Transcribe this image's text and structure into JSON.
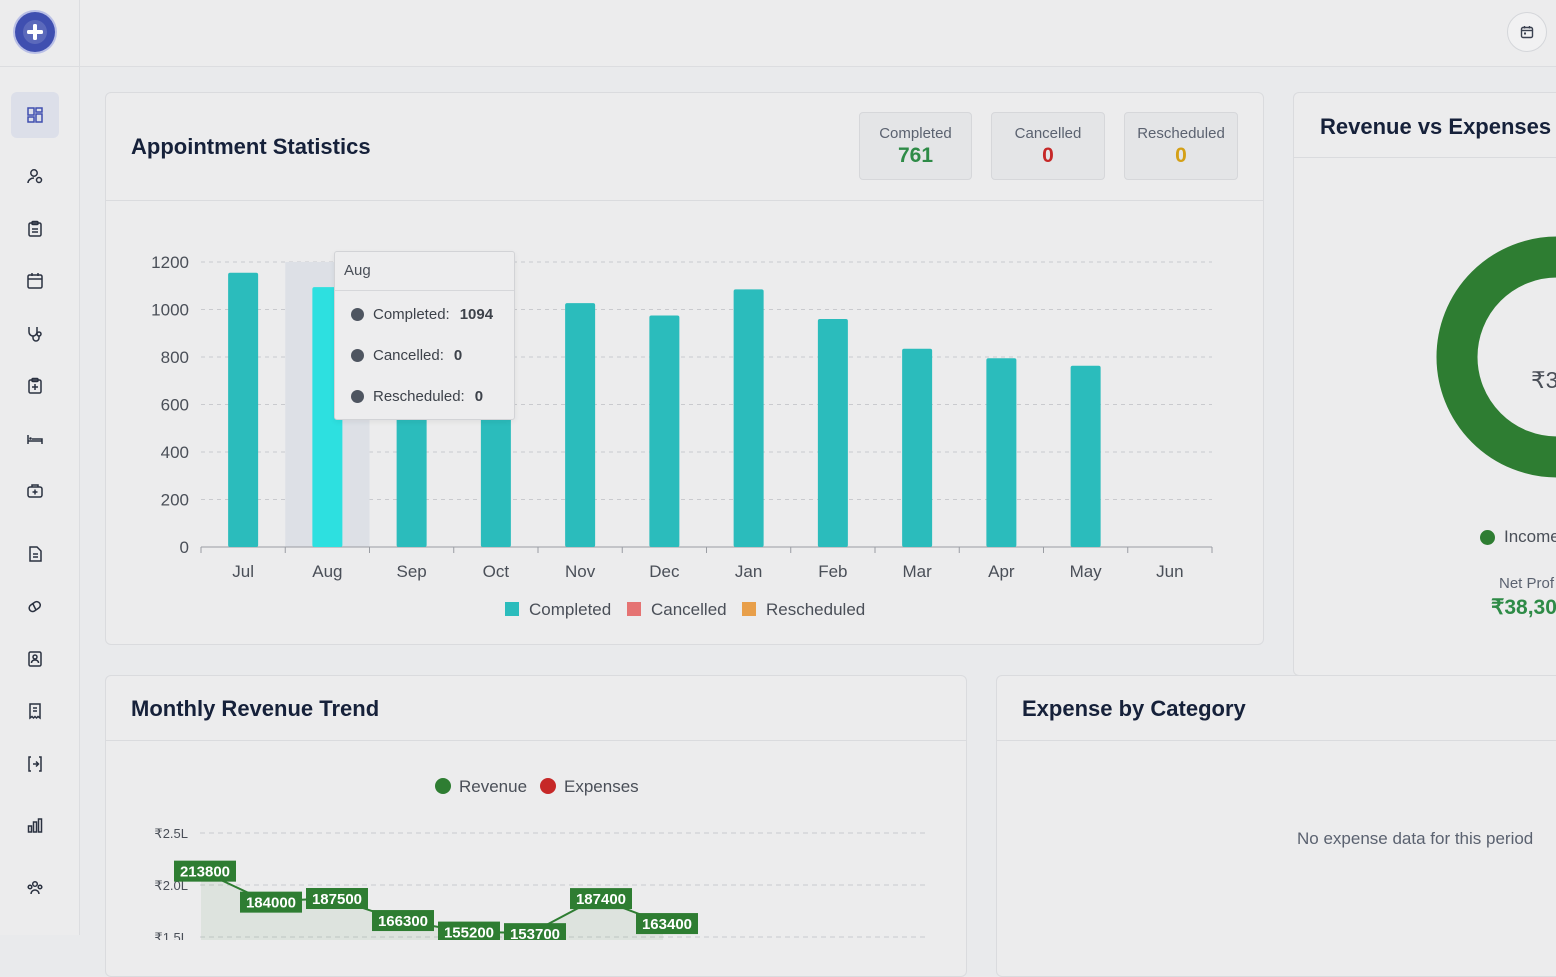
{
  "sidebar": {
    "items": [
      {
        "icon": "dashboard-icon",
        "active": true
      },
      {
        "icon": "users-icon"
      },
      {
        "icon": "clipboard-icon"
      },
      {
        "icon": "calendar-icon"
      },
      {
        "icon": "stethoscope-icon"
      },
      {
        "icon": "clipboard-plus-icon"
      },
      {
        "icon": "bed-icon"
      },
      {
        "icon": "medical-kit-icon"
      },
      {
        "icon": "document-icon"
      },
      {
        "icon": "pills-icon"
      },
      {
        "icon": "contacts-icon"
      },
      {
        "icon": "receipt-icon"
      },
      {
        "icon": "transfer-icon"
      },
      {
        "icon": "bar-chart-icon"
      },
      {
        "icon": "team-icon"
      }
    ]
  },
  "topbar": {
    "calendar_icon": "calendar-icon"
  },
  "appointments": {
    "title": "Appointment Statistics",
    "stats": [
      {
        "label": "Completed",
        "value": "761",
        "color": "#2e8b47"
      },
      {
        "label": "Cancelled",
        "value": "0",
        "color": "#c62828"
      },
      {
        "label": "Rescheduled",
        "value": "0",
        "color": "#d4a017"
      }
    ],
    "tooltip": {
      "month": "Aug",
      "rows": [
        {
          "label": "Completed:",
          "value": "1094"
        },
        {
          "label": "Cancelled:",
          "value": "0"
        },
        {
          "label": "Rescheduled:",
          "value": "0"
        }
      ]
    },
    "legend": [
      "Completed",
      "Cancelled",
      "Rescheduled"
    ]
  },
  "revenue_expenses": {
    "title": "Revenue vs Expenses",
    "center_text": "₹3",
    "legend_label": "Income",
    "net_profit_label": "Net Prof",
    "net_profit_value": "₹38,30"
  },
  "monthly_revenue": {
    "title": "Monthly Revenue Trend",
    "legend": [
      "Revenue",
      "Expenses"
    ]
  },
  "expense_category": {
    "title": "Expense by Category",
    "empty_text": "No expense data for this period"
  },
  "chart_data": [
    {
      "type": "bar",
      "categories": [
        "Jul",
        "Aug",
        "Sep",
        "Oct",
        "Nov",
        "Dec",
        "Jan",
        "Feb",
        "Mar",
        "Apr",
        "May",
        "Jun"
      ],
      "series": [
        {
          "name": "Completed",
          "values": [
            1155,
            1094,
            1040,
            1010,
            1027,
            975,
            1085,
            960,
            835,
            795,
            763,
            0
          ],
          "color": "#2bbcbc"
        },
        {
          "name": "Cancelled",
          "values": [
            0,
            0,
            0,
            0,
            0,
            0,
            0,
            0,
            0,
            0,
            0,
            0
          ],
          "color": "#e57373"
        },
        {
          "name": "Rescheduled",
          "values": [
            0,
            0,
            0,
            0,
            0,
            0,
            0,
            0,
            0,
            0,
            0,
            0
          ],
          "color": "#e89f4a"
        }
      ],
      "yticks": [
        "0",
        "200",
        "400",
        "600",
        "800",
        "1000",
        "1200"
      ],
      "ylim": [
        0,
        1200
      ],
      "grid": true,
      "highlight": "Aug"
    },
    {
      "type": "line",
      "series": [
        {
          "name": "Revenue",
          "values": [
            213800,
            184000,
            187500,
            166300,
            155200,
            153700,
            187400,
            163400
          ],
          "labels": [
            "213800",
            "184000",
            "187500",
            "166300",
            "155200",
            "153700",
            "187400",
            "163400"
          ],
          "color": "#2e7d32"
        },
        {
          "name": "Expenses",
          "values": [],
          "color": "#c62828"
        }
      ],
      "yticks": [
        "₹2.5L",
        "₹2.0L",
        "₹1.5L"
      ],
      "ylim": [
        150000,
        250000
      ],
      "grid": true
    },
    {
      "type": "pie",
      "series": [
        {
          "name": "Income",
          "color": "#2e7d32"
        }
      ]
    }
  ]
}
